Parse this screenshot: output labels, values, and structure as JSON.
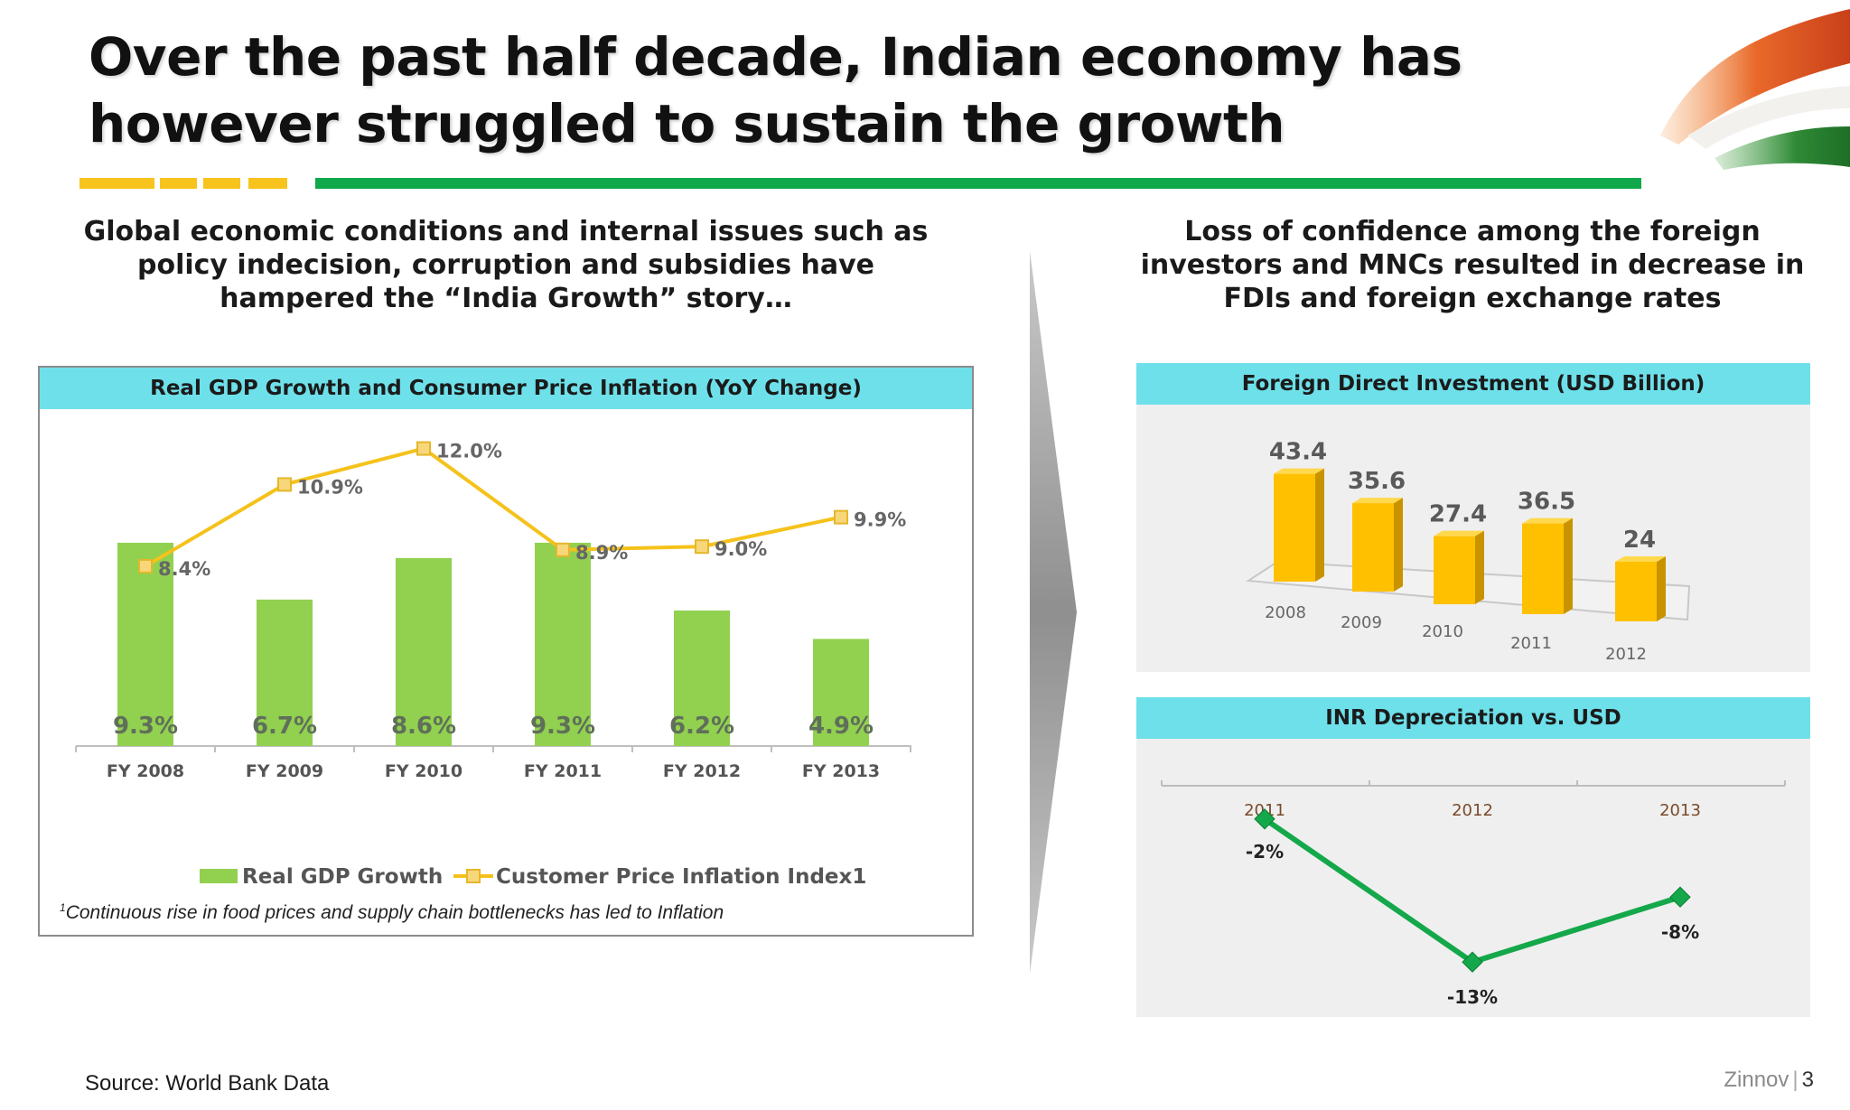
{
  "slide": {
    "title": "Over the past half decade, Indian economy has however struggled to sustain the growth",
    "left_subheading": "Global economic conditions and internal issues such as policy indecision, corruption and subsidies have hampered the “India Growth” story…",
    "right_subheading": "Loss of confidence among the foreign investors and MNCs resulted in decrease in FDIs and foreign exchange rates",
    "source": "Source: World Bank Data",
    "footer_brand": "Zinnov",
    "footer_sep": "|",
    "page_number": "3",
    "footnote_marker": "1",
    "footnote": "Continuous rise in food prices and supply chain bottlenecks has led to Inflation",
    "colors": {
      "accent_yellow": "#f7c31c",
      "accent_green": "#0fa84a",
      "panel_header": "#6ee0ea",
      "gdp_bar": "#92d050",
      "inflation_line": "#f5c21b",
      "fdi_bar": "#ffc000",
      "inr_line": "#14a84a"
    }
  },
  "chart_data": [
    {
      "type": "bar",
      "title": "Real GDP Growth and Consumer Price Inflation (YoY Change)",
      "categories": [
        "FY 2008",
        "FY 2009",
        "FY 2010",
        "FY 2011",
        "FY 2012",
        "FY 2013"
      ],
      "series": [
        {
          "name": "Real GDP Growth",
          "kind": "bar",
          "values": [
            9.3,
            6.7,
            8.6,
            9.3,
            6.2,
            4.9
          ],
          "labels": [
            "9.3%",
            "6.7%",
            "8.6%",
            "9.3%",
            "6.2%",
            "4.9%"
          ]
        },
        {
          "name": "Customer Price Inflation Index1",
          "kind": "line",
          "values": [
            8.4,
            10.9,
            12.0,
            8.9,
            9.0,
            9.9
          ],
          "labels": [
            "8.4%",
            "10.9%",
            "12.0%",
            "8.9%",
            "9.0%",
            "9.9%"
          ]
        }
      ],
      "legend": "bottom",
      "grid": false
    },
    {
      "type": "bar",
      "title": "Foreign Direct Investment (USD Billion)",
      "categories": [
        "2008",
        "2009",
        "2010",
        "2011",
        "2012"
      ],
      "values": [
        43.4,
        35.6,
        27.4,
        36.5,
        24
      ],
      "labels": [
        "43.4",
        "35.6",
        "27.4",
        "36.5",
        "24"
      ],
      "style": "3d",
      "grid": false
    },
    {
      "type": "line",
      "title": "INR Depreciation vs. USD",
      "categories": [
        "2011",
        "2012",
        "2013"
      ],
      "values": [
        -2,
        -13,
        -8
      ],
      "labels": [
        "-2%",
        "-13%",
        "-8%"
      ],
      "grid": false
    }
  ]
}
